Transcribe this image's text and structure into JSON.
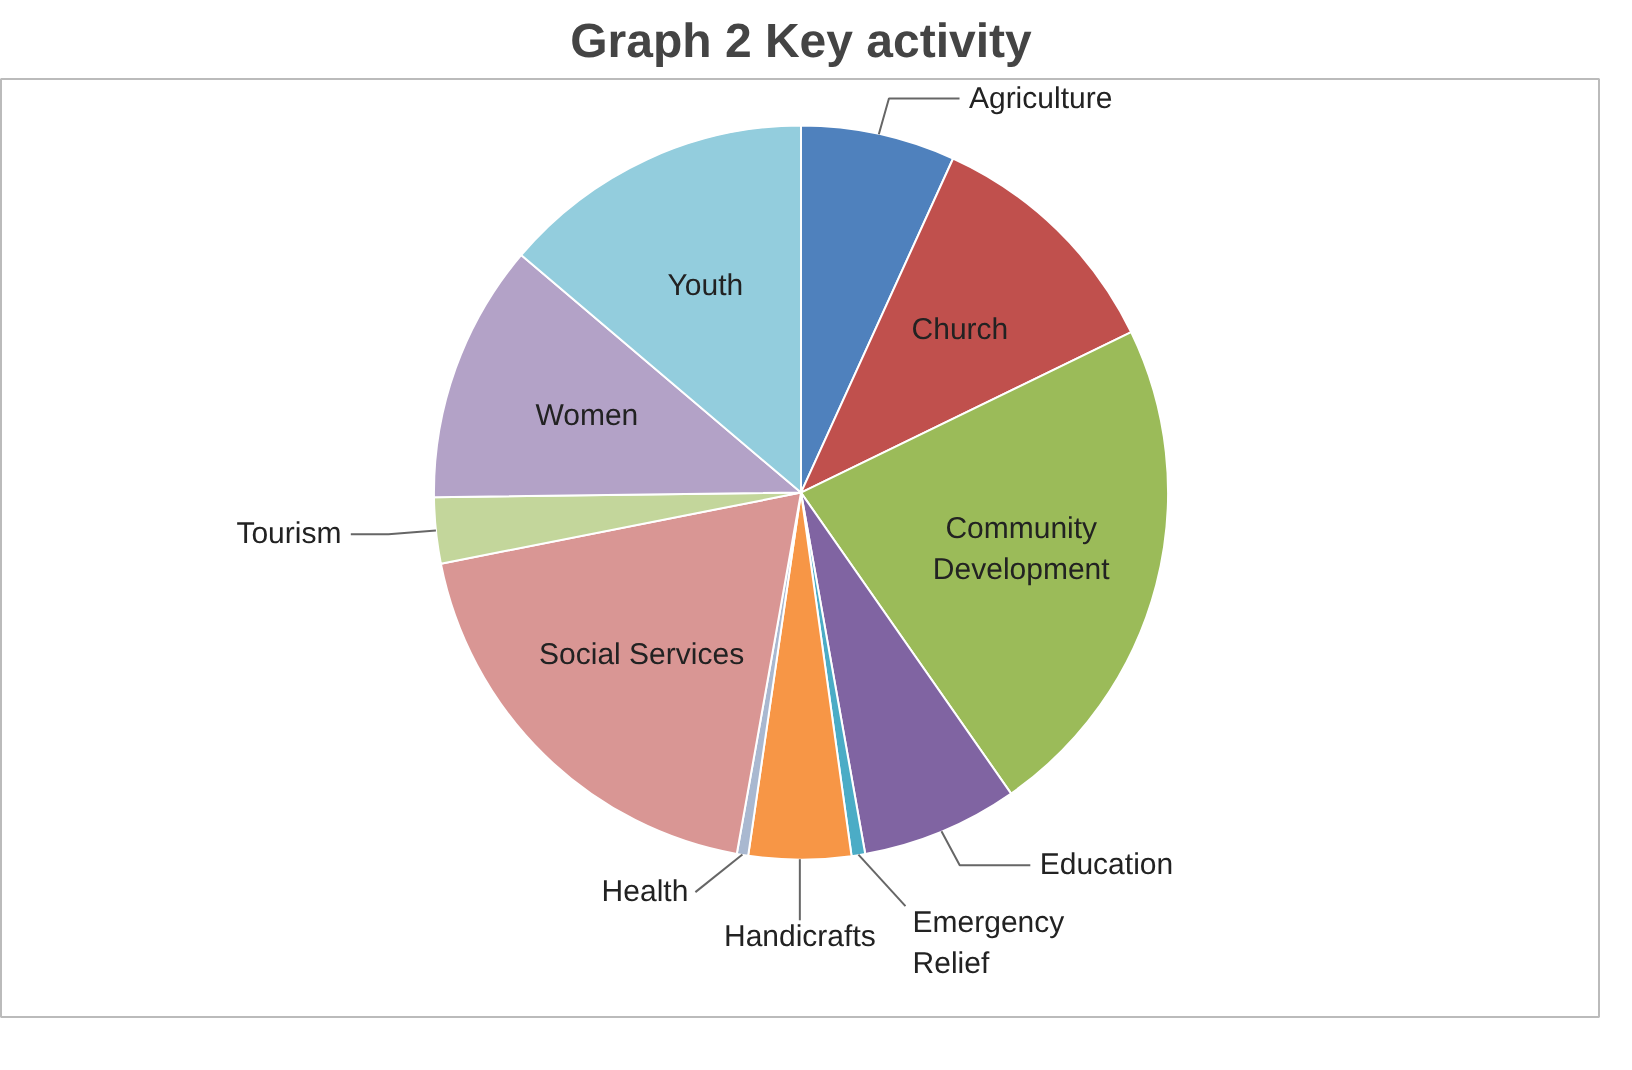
{
  "chart_data": {
    "type": "pie",
    "title": "Graph 2 Key activity",
    "categories": [
      "Agriculture",
      "Church",
      "Community Development",
      "Education",
      "Emergency Relief",
      "Handicrafts",
      "Health",
      "Social Services",
      "Tourism",
      "Women",
      "Youth"
    ],
    "values": [
      6.8,
      11.0,
      22.5,
      6.9,
      0.6,
      4.5,
      0.5,
      19.1,
      2.9,
      11.4,
      13.8
    ],
    "colors": [
      "#4f81bd",
      "#c0504d",
      "#9bbb59",
      "#8064a2",
      "#4bacc6",
      "#f79646",
      "#a9b8d0",
      "#d99694",
      "#c3d69b",
      "#b3a2c7",
      "#93cddd"
    ],
    "legend": false
  }
}
